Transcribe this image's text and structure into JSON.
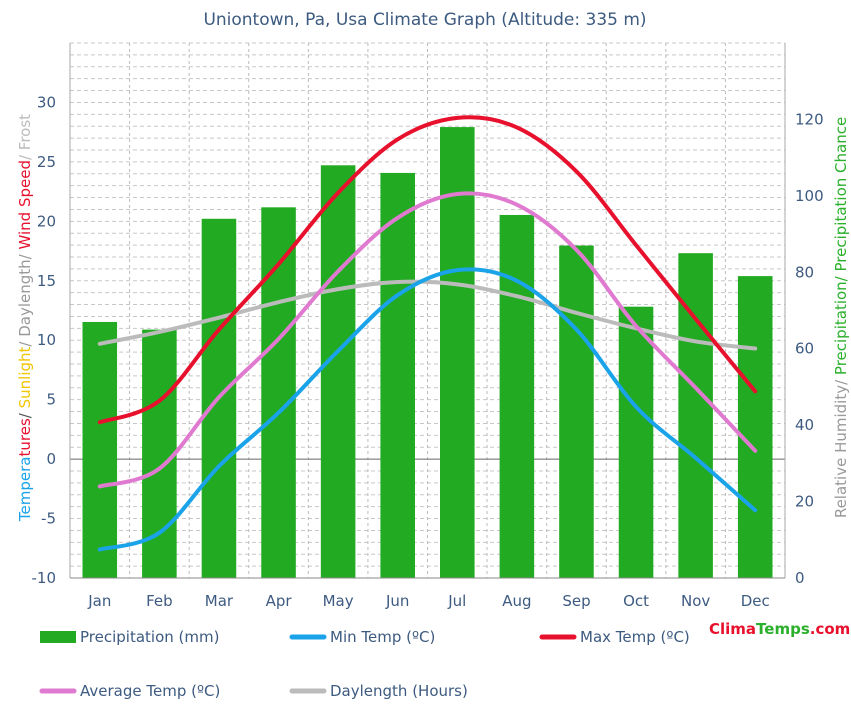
{
  "chart_data": {
    "type": "bar",
    "title": "Uniontown, Pa, Usa Climate Graph (Altitude: 335 m)",
    "categories": [
      "Jan",
      "Feb",
      "Mar",
      "Apr",
      "May",
      "Jun",
      "Jul",
      "Aug",
      "Sep",
      "Oct",
      "Nov",
      "Dec"
    ],
    "y_left": {
      "range": [
        -10,
        35
      ],
      "ticks": [
        -10,
        -5,
        0,
        5,
        10,
        15,
        20,
        25,
        30
      ],
      "label_parts": [
        {
          "text": "Tempera",
          "color": "#1aa3e8"
        },
        {
          "text": "tures",
          "color": "#e8112d"
        },
        {
          "text": "/ ",
          "color": "#555555"
        },
        {
          "text": "Sunlight",
          "color": "#f2c600"
        },
        {
          "text": "/ Daylength/ ",
          "color": "#999999"
        },
        {
          "text": "Wind Speed",
          "color": "#e8112d"
        },
        {
          "text": "/ Frost",
          "color": "#bbbbbb"
        }
      ]
    },
    "y_right": {
      "range": [
        0,
        140
      ],
      "ticks": [
        0,
        20,
        40,
        60,
        80,
        100,
        120
      ],
      "label_parts": [
        {
          "text": "Relative Humidity/ ",
          "color": "#999999"
        },
        {
          "text": "Precipitation/ Precipitation Chance",
          "color": "#2bb02b"
        }
      ]
    },
    "series": [
      {
        "name": "Precipitation (mm)",
        "kind": "bar",
        "axis": "right",
        "color": "#22aa22",
        "values": [
          67,
          65,
          94,
          97,
          108,
          106,
          118,
          95,
          87,
          71,
          85,
          79
        ]
      },
      {
        "name": "Min Temp (ºC)",
        "kind": "line",
        "axis": "left",
        "color": "#1aa3e8",
        "values": [
          -7.6,
          -6.2,
          -0.6,
          3.9,
          9.1,
          13.8,
          15.9,
          15.0,
          10.9,
          4.4,
          0.1,
          -4.3
        ]
      },
      {
        "name": "Max Temp (ºC)",
        "kind": "line",
        "axis": "left",
        "color": "#e8112d",
        "values": [
          3.1,
          4.9,
          10.9,
          16.4,
          22.4,
          26.9,
          28.7,
          27.9,
          24.2,
          18.0,
          11.8,
          5.7
        ]
      },
      {
        "name": "Average Temp (ºC)",
        "kind": "line",
        "axis": "left",
        "color": "#e07ad0",
        "values": [
          -2.3,
          -0.8,
          5.2,
          10.1,
          15.8,
          20.3,
          22.3,
          21.4,
          17.6,
          11.2,
          6.0,
          0.7
        ]
      },
      {
        "name": "Daylength (Hours)",
        "kind": "line",
        "axis": "left",
        "color": "#bbbbbb",
        "values": [
          9.7,
          10.7,
          11.9,
          13.2,
          14.3,
          14.9,
          14.7,
          13.7,
          12.3,
          11.0,
          9.9,
          9.3
        ]
      }
    ],
    "legend": [
      {
        "label": "Precipitation (mm)",
        "color": "#22aa22",
        "kind": "bar"
      },
      {
        "label": "Min Temp (ºC)",
        "color": "#1aa3e8",
        "kind": "line"
      },
      {
        "label": "Max Temp (ºC)",
        "color": "#e8112d",
        "kind": "line"
      },
      {
        "label": "Average Temp (ºC)",
        "color": "#e07ad0",
        "kind": "line"
      },
      {
        "label": "Daylength (Hours)",
        "color": "#bbbbbb",
        "kind": "line"
      }
    ],
    "brand": {
      "part1": "Clima",
      "part2": "Temps",
      "part3": ".com"
    },
    "grid": true
  }
}
